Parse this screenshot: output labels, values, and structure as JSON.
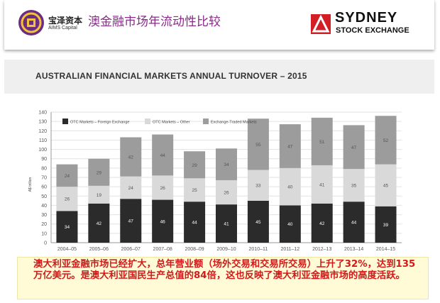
{
  "header": {
    "brand_cn": "宝泽资本",
    "brand_en": "AIMS Capital",
    "title": "澳金融市场年流动性比较",
    "partner_line1": "SYDNEY",
    "partner_line2": "STOCK EXCHANGE",
    "logo_icon": "aims-logo-icon",
    "partner_icon": "asx-logo-icon"
  },
  "chart_data": {
    "type": "bar",
    "stacked": true,
    "title": "AUSTRALIAN FINANCIAL MARKETS ANNUAL TURNOVER – 2015",
    "ylabel": "A$ trillion",
    "xlabel": "",
    "ylim": [
      0,
      140
    ],
    "yticks": [
      0,
      10,
      20,
      30,
      40,
      50,
      60,
      70,
      80,
      90,
      100,
      110,
      120,
      130,
      140
    ],
    "grid": "horizontal",
    "legend": "top-left",
    "categories": [
      "2004–05",
      "2005–06",
      "2006–07",
      "2007–08",
      "2008–09",
      "2009–10",
      "2010–11",
      "2011–12",
      "2012–13",
      "2013–14",
      "2014–15"
    ],
    "series": [
      {
        "name": "OTC Markets – Foreign Exchange",
        "color": "#2b2b2b",
        "values": [
          34,
          42,
          47,
          46,
          44,
          41,
          45,
          40,
          42,
          44,
          39
        ]
      },
      {
        "name": "OTC Markets – Other",
        "color": "#d9d9d9",
        "values": [
          26,
          19,
          24,
          26,
          25,
          26,
          33,
          40,
          41,
          35,
          45
        ]
      },
      {
        "name": "Exchange-Traded Markets",
        "color": "#9c9c9c",
        "values": [
          24,
          29,
          42,
          44,
          29,
          34,
          55,
          47,
          51,
          47,
          52
        ]
      }
    ]
  },
  "caption": {
    "text": "澳大利亚金融市场已经扩大，总年营业额（场外交易和交易所交易）上升了32%，达到135万亿美元。是澳大利亚国民生产总值的84倍，这也反映了澳大利亚金融市场的高度活跃。"
  }
}
